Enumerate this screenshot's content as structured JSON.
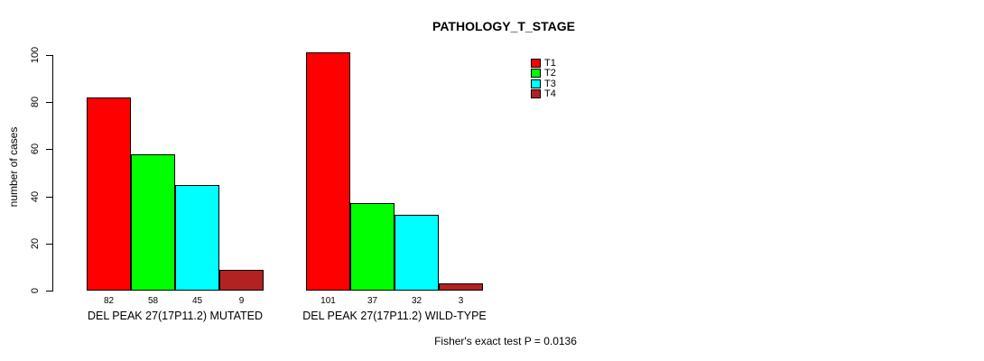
{
  "chart_data": {
    "type": "bar",
    "title": "PATHOLOGY_T_STAGE",
    "ylabel": "number of cases",
    "xlabel": "",
    "ylim": [
      0,
      100
    ],
    "yticks": [
      0,
      20,
      40,
      60,
      80,
      100
    ],
    "grid": false,
    "legend_position": "top-right",
    "bar_value_labels": true,
    "series": [
      {
        "name": "T1",
        "color": "#FF0000"
      },
      {
        "name": "T2",
        "color": "#00FF00"
      },
      {
        "name": "T3",
        "color": "#00FFFF"
      },
      {
        "name": "T4",
        "color": "#B22222"
      }
    ],
    "groups": [
      {
        "label": "DEL PEAK 27(17P11.2) MUTATED",
        "values": [
          82,
          58,
          45,
          9
        ]
      },
      {
        "label": "DEL PEAK 27(17P11.2) WILD-TYPE",
        "values": [
          101,
          37,
          32,
          3
        ]
      }
    ]
  },
  "footer": {
    "stat_text": "Fisher's exact test P = 0.0136"
  }
}
